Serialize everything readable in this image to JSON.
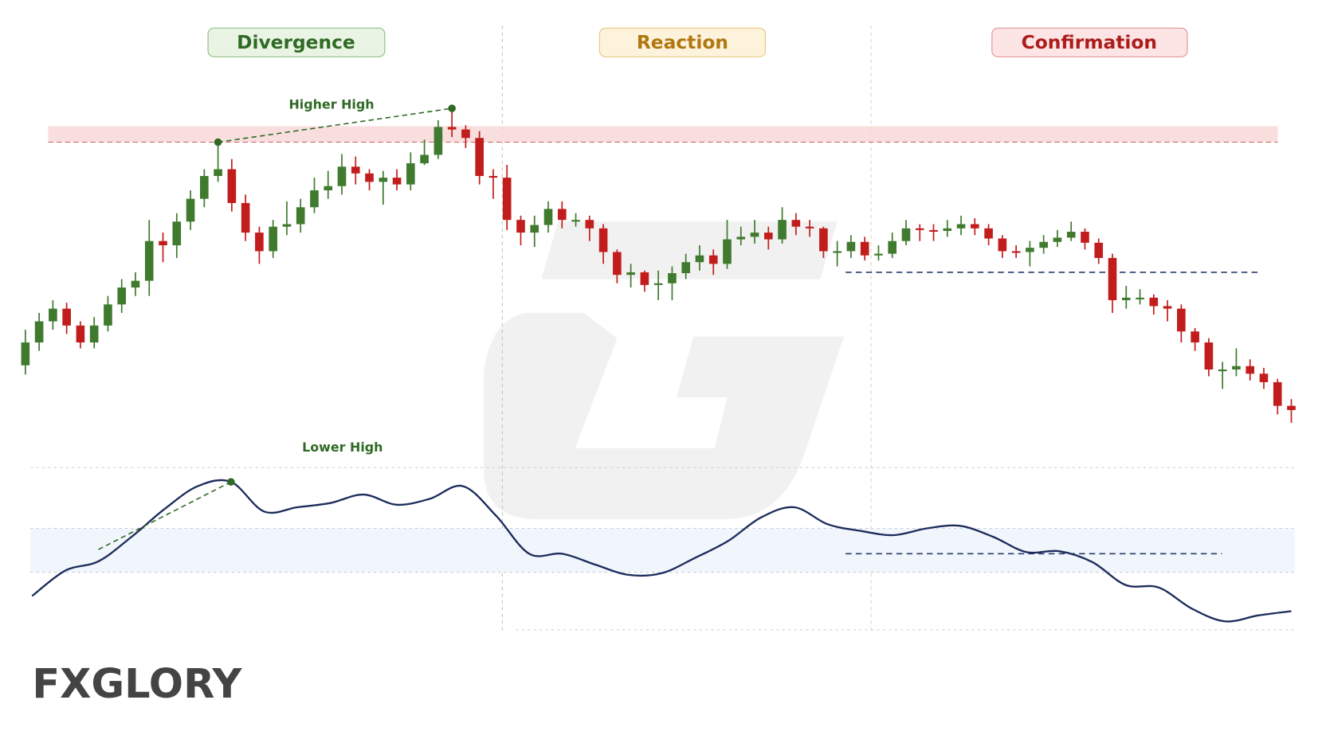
{
  "chart_data": {
    "type": "candlestick",
    "phases": [
      "Divergence",
      "Reaction",
      "Confirmation"
    ],
    "annotations": {
      "price": "Higher High",
      "oscillator": "Lower High"
    },
    "ylim": [
      0,
      400
    ],
    "open": [
      68,
      95,
      120,
      135,
      115,
      95,
      115,
      140,
      160,
      168,
      215,
      210,
      238,
      265,
      292,
      300,
      260,
      225,
      203,
      232,
      235,
      255,
      275,
      280,
      303,
      295,
      285,
      290,
      282,
      307,
      317,
      350,
      347,
      337,
      292,
      290,
      240,
      225,
      234,
      253,
      240,
      240,
      230,
      202,
      175,
      178,
      163,
      165,
      177,
      190,
      198,
      188,
      217,
      220,
      225,
      217,
      240,
      232,
      230,
      203,
      203,
      214,
      198,
      200,
      215,
      230,
      228,
      227,
      230,
      235,
      230,
      218,
      203,
      202,
      207,
      214,
      219,
      226,
      213,
      195,
      145,
      148,
      148,
      138,
      135,
      108,
      95,
      63,
      63,
      67,
      58,
      48,
      20
    ],
    "high": [
      110,
      130,
      145,
      142,
      120,
      125,
      150,
      170,
      178,
      240,
      225,
      248,
      275,
      300,
      332,
      312,
      270,
      232,
      240,
      262,
      265,
      290,
      298,
      318,
      315,
      300,
      298,
      300,
      320,
      335,
      358,
      372,
      352,
      345,
      300,
      305,
      245,
      245,
      262,
      262,
      248,
      245,
      235,
      205,
      188,
      180,
      180,
      185,
      200,
      210,
      205,
      240,
      232,
      240,
      232,
      255,
      248,
      240,
      232,
      215,
      222,
      220,
      210,
      225,
      240,
      235,
      235,
      240,
      245,
      242,
      235,
      222,
      210,
      215,
      222,
      228,
      238,
      230,
      218,
      200,
      162,
      158,
      152,
      145,
      140,
      112,
      100,
      72,
      88,
      75,
      65,
      52,
      28
    ],
    "low": [
      57,
      85,
      110,
      105,
      88,
      88,
      108,
      130,
      150,
      150,
      190,
      195,
      228,
      255,
      285,
      250,
      215,
      188,
      195,
      222,
      225,
      248,
      265,
      270,
      282,
      275,
      258,
      275,
      275,
      305,
      312,
      338,
      325,
      282,
      265,
      228,
      210,
      208,
      225,
      230,
      232,
      215,
      188,
      165,
      160,
      155,
      145,
      145,
      170,
      180,
      175,
      182,
      210,
      212,
      205,
      212,
      222,
      220,
      195,
      185,
      195,
      192,
      192,
      195,
      210,
      215,
      215,
      220,
      222,
      222,
      210,
      195,
      195,
      185,
      200,
      208,
      215,
      205,
      188,
      130,
      135,
      140,
      128,
      120,
      95,
      85,
      55,
      40,
      55,
      50,
      40,
      10,
      0
    ],
    "close": [
      95,
      120,
      135,
      115,
      95,
      115,
      140,
      160,
      168,
      215,
      210,
      238,
      265,
      292,
      300,
      260,
      225,
      203,
      232,
      235,
      255,
      275,
      280,
      303,
      295,
      285,
      290,
      282,
      307,
      317,
      350,
      347,
      337,
      292,
      290,
      240,
      225,
      234,
      253,
      240,
      240,
      230,
      202,
      175,
      178,
      163,
      165,
      177,
      190,
      198,
      188,
      217,
      220,
      225,
      217,
      240,
      232,
      230,
      203,
      203,
      214,
      198,
      200,
      215,
      230,
      228,
      227,
      230,
      235,
      230,
      218,
      203,
      202,
      207,
      214,
      219,
      226,
      213,
      195,
      145,
      148,
      148,
      138,
      135,
      108,
      95,
      63,
      63,
      67,
      58,
      48,
      20,
      15
    ],
    "colors": {
      "up": "#3f7a2e",
      "down": "#c21d1d"
    },
    "resistance": 332,
    "support": 178,
    "oscillator": {
      "values": [
        40,
        70,
        81,
        110,
        143,
        170,
        175,
        140,
        145,
        150,
        160,
        148,
        155,
        170,
        135,
        90,
        90,
        77,
        65,
        67,
        85,
        105,
        133,
        145,
        125,
        117,
        112,
        120,
        123,
        110,
        92,
        93,
        80,
        53,
        50,
        25,
        10,
        17,
        22
      ],
      "ylim": [
        0,
        192
      ],
      "levels": [
        0,
        68,
        120,
        192
      ],
      "support": 90,
      "color": "#1c2b5c"
    }
  },
  "brand": "FXGLORY"
}
